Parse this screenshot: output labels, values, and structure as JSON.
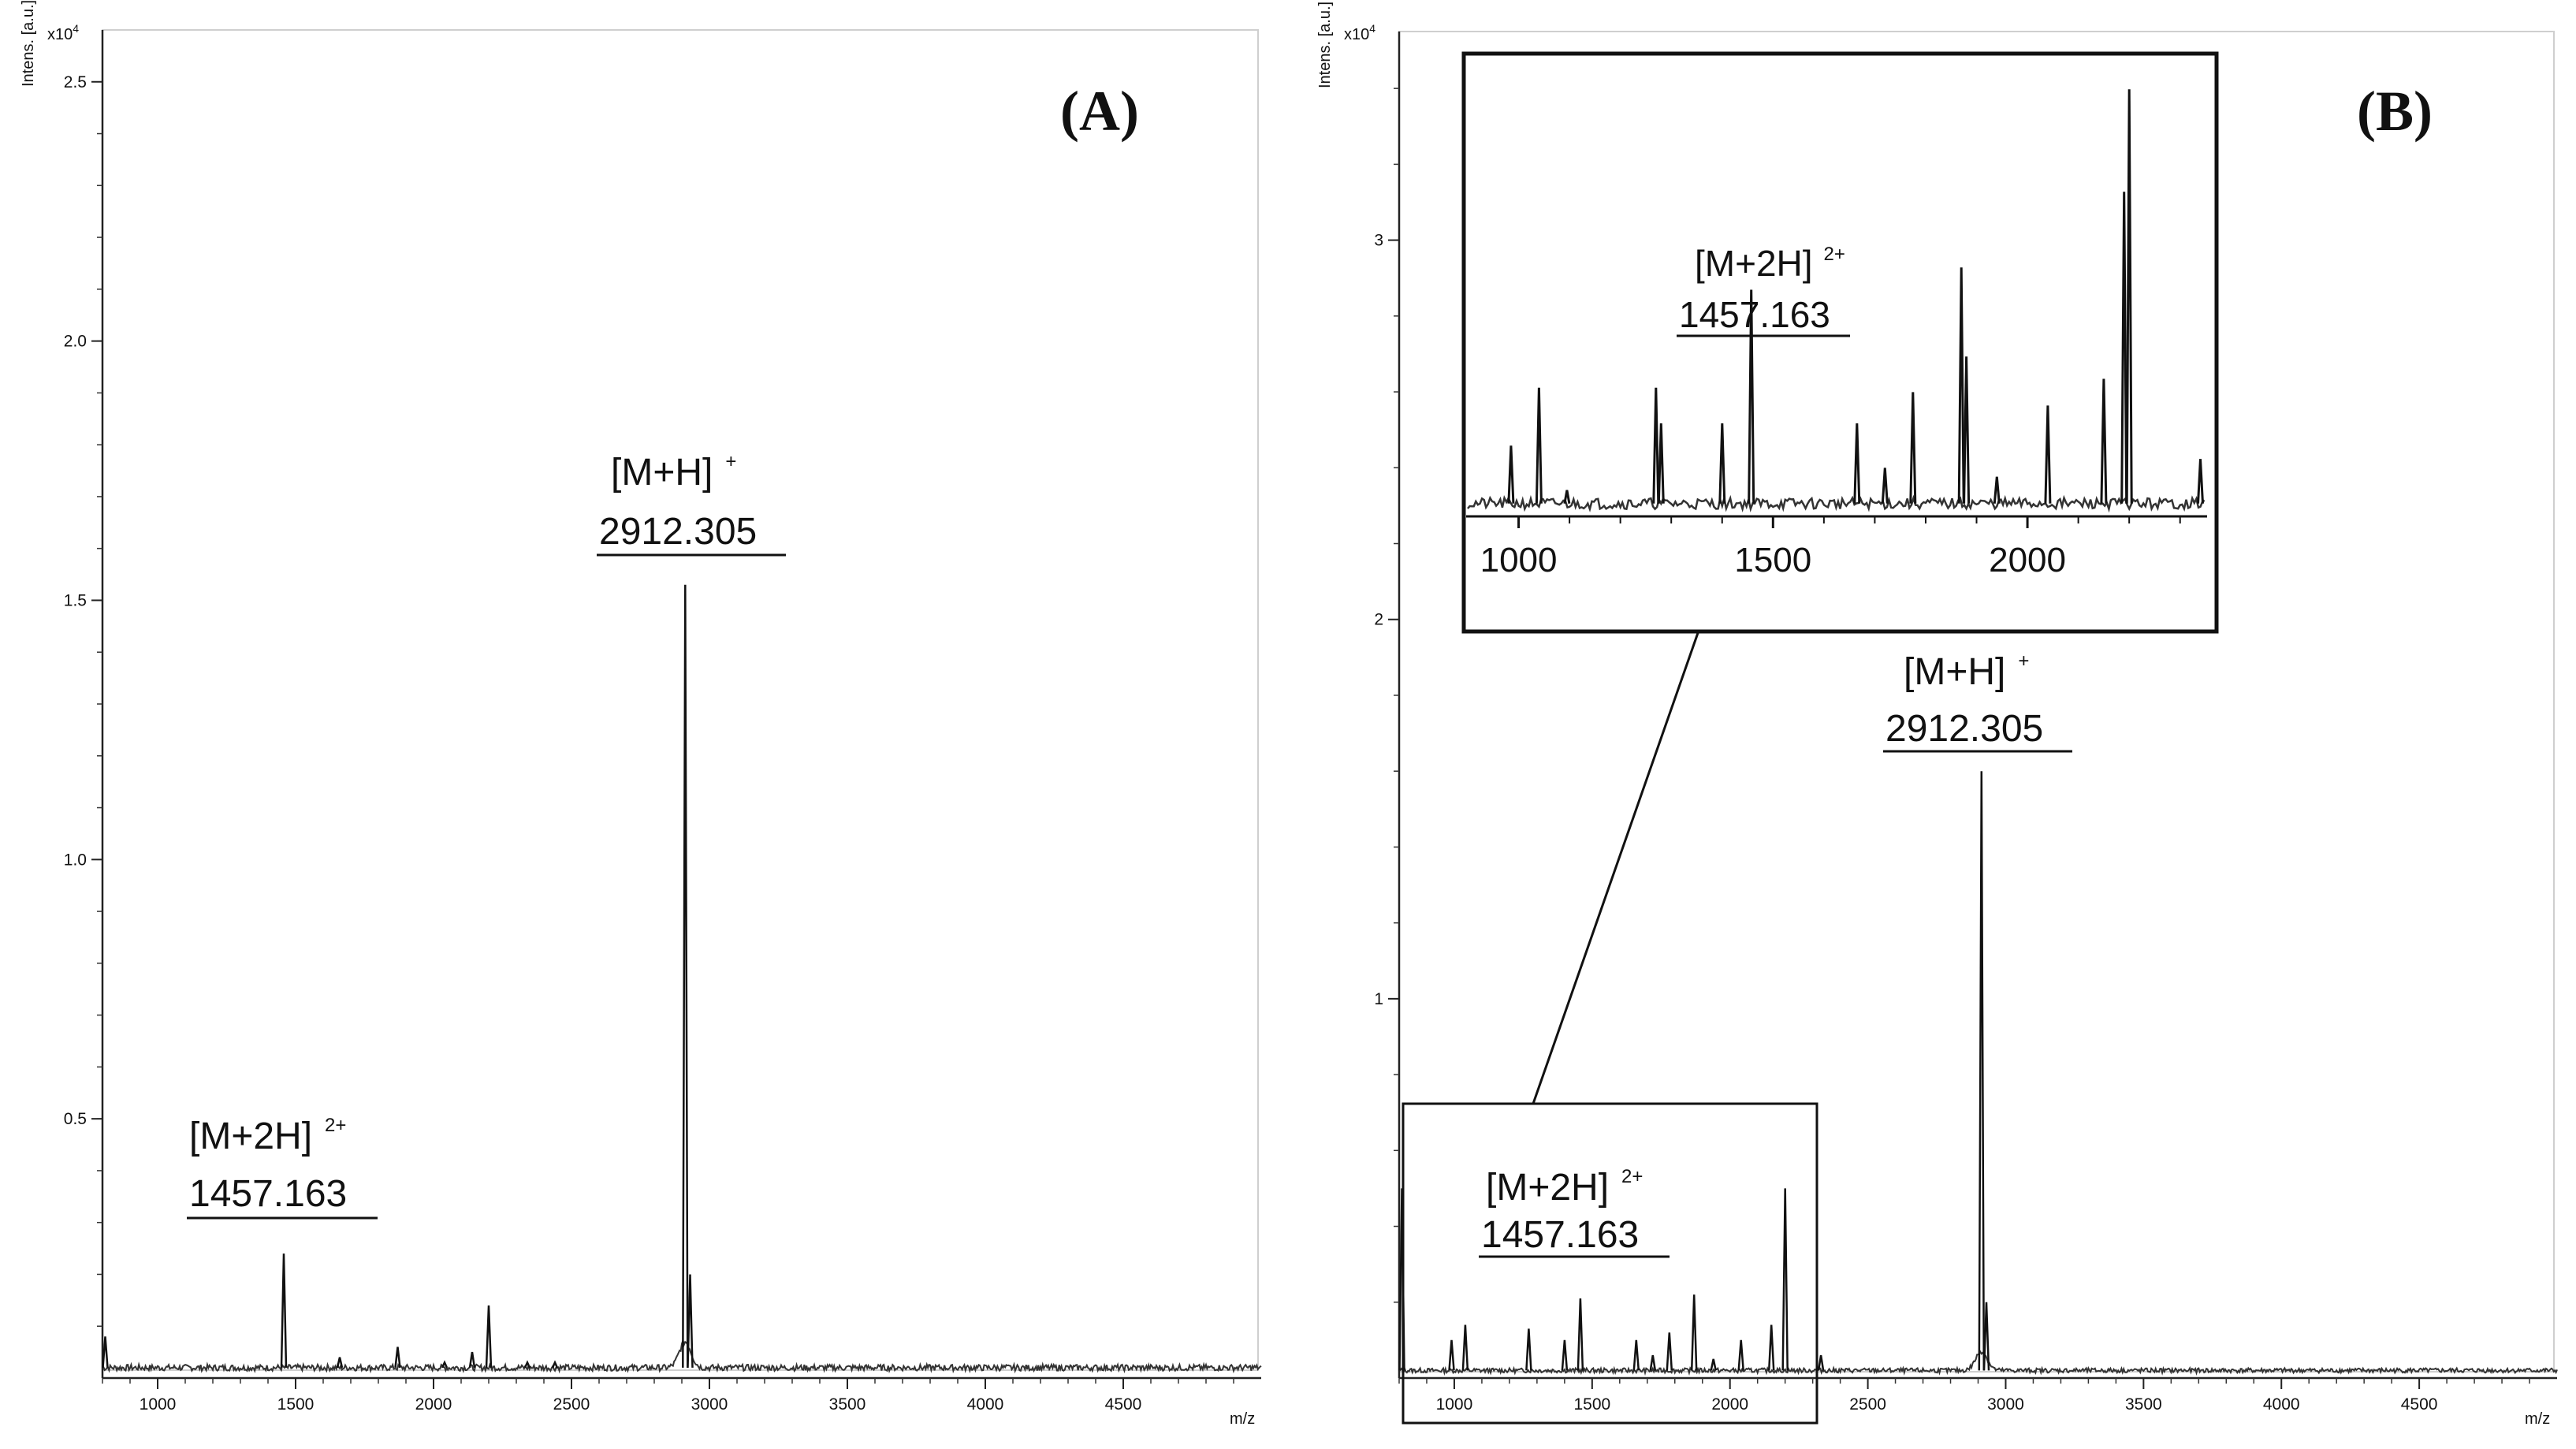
{
  "chart_data": [
    {
      "id": "A",
      "type": "line",
      "panel_label": "(A)",
      "xlabel": "m/z",
      "ylabel": "Intens. [a.u.]",
      "y_multiplier": "x10",
      "y_multiplier_exp": "4",
      "xlim": [
        800,
        5000
      ],
      "ylim": [
        0,
        2.6
      ],
      "xticks": [
        1000,
        1500,
        2000,
        2500,
        3000,
        3500,
        4000,
        4500
      ],
      "xtick_labels": [
        "1000",
        "1500",
        "2000",
        "2500",
        "3000",
        "3500",
        "4000",
        "4500"
      ],
      "yticks": [
        0.5,
        1.0,
        1.5,
        2.0,
        2.5
      ],
      "ytick_labels": [
        "0.5",
        "1.0",
        "1.5",
        "2.0",
        "2.5"
      ],
      "baseline": 0.02,
      "peaks": [
        {
          "mz": 810,
          "intensity": 0.08
        },
        {
          "mz": 1457.163,
          "intensity": 0.24
        },
        {
          "mz": 1660,
          "intensity": 0.04
        },
        {
          "mz": 1870,
          "intensity": 0.06
        },
        {
          "mz": 2040,
          "intensity": 0.03
        },
        {
          "mz": 2140,
          "intensity": 0.05
        },
        {
          "mz": 2200,
          "intensity": 0.14
        },
        {
          "mz": 2340,
          "intensity": 0.03
        },
        {
          "mz": 2440,
          "intensity": 0.03
        },
        {
          "mz": 2912.305,
          "intensity": 1.53
        },
        {
          "mz": 2930,
          "intensity": 0.2
        }
      ],
      "annotations": [
        {
          "ion": "[M+H]",
          "charge": "+",
          "mz_label": "2912.305",
          "mz": 2912.305
        },
        {
          "ion": "[M+2H]",
          "charge": "2+",
          "mz_label": "1457.163",
          "mz": 1457.163
        }
      ]
    },
    {
      "id": "B",
      "type": "line",
      "panel_label": "(B)",
      "xlabel": "m/z",
      "ylabel": "Intens. [a.u.]",
      "y_multiplier": "x10",
      "y_multiplier_exp": "4",
      "xlim": [
        800,
        5000
      ],
      "ylim": [
        0,
        3.55
      ],
      "xticks": [
        1000,
        1500,
        2000,
        2500,
        3000,
        3500,
        4000,
        4500
      ],
      "xtick_labels": [
        "1000",
        "1500",
        "2000",
        "2500",
        "3000",
        "3500",
        "4000",
        "4500"
      ],
      "yticks": [
        1,
        2,
        3
      ],
      "ytick_labels": [
        "1",
        "2",
        "3"
      ],
      "baseline": 0.02,
      "peaks": [
        {
          "mz": 810,
          "intensity": 0.5
        },
        {
          "mz": 990,
          "intensity": 0.1
        },
        {
          "mz": 1040,
          "intensity": 0.14
        },
        {
          "mz": 1270,
          "intensity": 0.13
        },
        {
          "mz": 1400,
          "intensity": 0.1
        },
        {
          "mz": 1457.163,
          "intensity": 0.21
        },
        {
          "mz": 1660,
          "intensity": 0.1
        },
        {
          "mz": 1720,
          "intensity": 0.06
        },
        {
          "mz": 1780,
          "intensity": 0.12
        },
        {
          "mz": 1870,
          "intensity": 0.22
        },
        {
          "mz": 1940,
          "intensity": 0.05
        },
        {
          "mz": 2040,
          "intensity": 0.1
        },
        {
          "mz": 2150,
          "intensity": 0.14
        },
        {
          "mz": 2200,
          "intensity": 0.5
        },
        {
          "mz": 2330,
          "intensity": 0.06
        },
        {
          "mz": 2912.305,
          "intensity": 1.6
        },
        {
          "mz": 2930,
          "intensity": 0.2
        }
      ],
      "annotations": [
        {
          "ion": "[M+H]",
          "charge": "+",
          "mz_label": "2912.305",
          "mz": 2912.305
        },
        {
          "ion": "[M+2H]",
          "charge": "2+",
          "mz_label": "1457.163",
          "mz": 1457.163
        }
      ],
      "inset": {
        "xlim": [
          900,
          2350
        ],
        "xticks": [
          1000,
          1500,
          2000
        ],
        "xtick_labels": [
          "1000",
          "1500",
          "2000"
        ],
        "zoom_range": [
          800,
          2330
        ],
        "annotation": {
          "ion": "[M+2H]",
          "charge": "2+",
          "mz_label": "1457.163",
          "mz": 1457.163
        },
        "peaks": [
          {
            "mz": 985,
            "intensity": 0.15
          },
          {
            "mz": 1040,
            "intensity": 0.28
          },
          {
            "mz": 1095,
            "intensity": 0.05
          },
          {
            "mz": 1270,
            "intensity": 0.28
          },
          {
            "mz": 1280,
            "intensity": 0.2
          },
          {
            "mz": 1400,
            "intensity": 0.2
          },
          {
            "mz": 1457.163,
            "intensity": 0.5
          },
          {
            "mz": 1665,
            "intensity": 0.2
          },
          {
            "mz": 1720,
            "intensity": 0.1
          },
          {
            "mz": 1775,
            "intensity": 0.27
          },
          {
            "mz": 1870,
            "intensity": 0.55
          },
          {
            "mz": 1880,
            "intensity": 0.35
          },
          {
            "mz": 1940,
            "intensity": 0.08
          },
          {
            "mz": 2040,
            "intensity": 0.24
          },
          {
            "mz": 2150,
            "intensity": 0.3
          },
          {
            "mz": 2200,
            "intensity": 0.95
          },
          {
            "mz": 2190,
            "intensity": 0.72
          },
          {
            "mz": 2340,
            "intensity": 0.12
          }
        ]
      }
    }
  ]
}
